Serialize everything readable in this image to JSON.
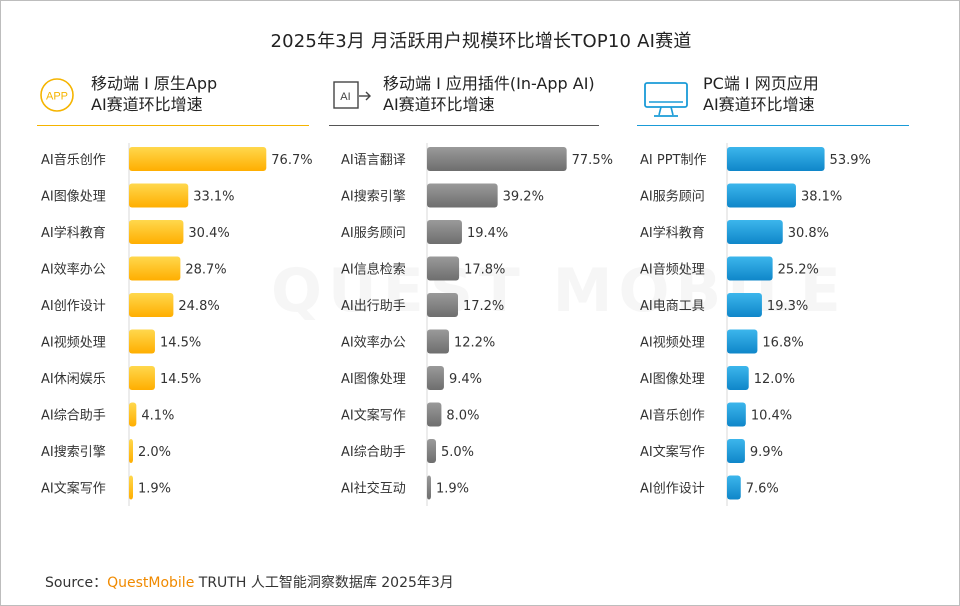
{
  "title": "2025年3月 月活跃用户规模环比增长TOP10 AI赛道",
  "panels": [
    {
      "line1": "移动端 I 原生App",
      "line2": "AI赛道环比增速",
      "icon": "app-icon",
      "icon_text": "APP",
      "accent": "#f5b400"
    },
    {
      "line1": "移动端 I 应用插件(In-App AI)",
      "line2": "AI赛道环比增速",
      "icon": "ai-plugin-icon",
      "icon_text": "AI",
      "accent": "#555555"
    },
    {
      "line1": "PC端 I 网页应用",
      "line2": "AI赛道环比增速",
      "icon": "monitor-icon",
      "icon_text": "",
      "accent": "#1a9bd7"
    }
  ],
  "chart_data": [
    {
      "type": "bar",
      "orientation": "horizontal",
      "title": "移动端 I 原生App AI赛道环比增速",
      "categories": [
        "AI音乐创作",
        "AI图像处理",
        "AI学科教育",
        "AI效率办公",
        "AI创作设计",
        "AI视频处理",
        "AI休闲娱乐",
        "AI综合助手",
        "AI搜索引擎",
        "AI文案写作"
      ],
      "values": [
        76.7,
        33.1,
        30.4,
        28.7,
        24.8,
        14.5,
        14.5,
        4.1,
        2.0,
        1.9
      ],
      "labels": [
        "76.7%",
        "33.1%",
        "30.4%",
        "28.7%",
        "24.8%",
        "14.5%",
        "14.5%",
        "4.1%",
        "2.0%",
        "1.9%"
      ],
      "color_top": "#ffd84d",
      "color_bottom": "#ffae00"
    },
    {
      "type": "bar",
      "orientation": "horizontal",
      "title": "移动端 I 应用插件(In-App AI) AI赛道环比增速",
      "categories": [
        "AI语言翻译",
        "AI搜索引擎",
        "AI服务顾问",
        "AI信息检索",
        "AI出行助手",
        "AI效率办公",
        "AI图像处理",
        "AI文案写作",
        "AI综合助手",
        "AI社交互动"
      ],
      "values": [
        77.5,
        39.2,
        19.4,
        17.8,
        17.2,
        12.2,
        9.4,
        8.0,
        5.0,
        1.9
      ],
      "labels": [
        "77.5%",
        "39.2%",
        "19.4%",
        "17.8%",
        "17.2%",
        "12.2%",
        "9.4%",
        "8.0%",
        "5.0%",
        "1.9%"
      ],
      "color_top": "#9a9a9a",
      "color_bottom": "#6e6e6e"
    },
    {
      "type": "bar",
      "orientation": "horizontal",
      "title": "PC端 I 网页应用 AI赛道环比增速",
      "categories": [
        "AI PPT制作",
        "AI服务顾问",
        "AI学科教育",
        "AI音频处理",
        "AI电商工具",
        "AI视频处理",
        "AI图像处理",
        "AI音乐创作",
        "AI文案写作",
        "AI创作设计"
      ],
      "values": [
        53.9,
        38.1,
        30.8,
        25.2,
        19.3,
        16.8,
        12.0,
        10.4,
        9.9,
        7.6
      ],
      "labels": [
        "53.9%",
        "38.1%",
        "30.8%",
        "25.2%",
        "19.3%",
        "16.8%",
        "12.0%",
        "10.4%",
        "9.9%",
        "7.6%"
      ],
      "color_top": "#3cb6ec",
      "color_bottom": "#0f86c9"
    }
  ],
  "watermark": "QUEST MOBILE",
  "source": {
    "prefix": "Source：",
    "brand": "QuestMobile",
    "suffix": " TRUTH 人工智能洞察数据库 2025年3月"
  }
}
